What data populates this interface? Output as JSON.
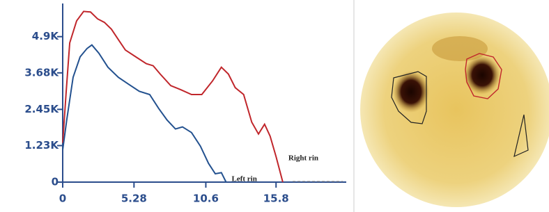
{
  "chart_data": {
    "type": "line",
    "xlim": [
      0,
      21
    ],
    "ylim": [
      0,
      5900
    ],
    "xticks": [
      0,
      5.28,
      10.6,
      15.8
    ],
    "yticks": [
      0,
      {
        "value": 1230,
        "label": "1.23K"
      },
      {
        "value": 2450,
        "label": "2.45K"
      },
      {
        "value": 3680,
        "label": "3.68K"
      },
      {
        "value": 4900,
        "label": "4.9K"
      }
    ],
    "series": [
      {
        "name": "Right rin",
        "color": "#c0262b",
        "x": [
          0,
          0.26,
          0.52,
          1.03,
          1.55,
          2.06,
          2.58,
          3.09,
          3.61,
          4.12,
          4.64,
          5.41,
          6.19,
          6.7,
          7.22,
          8.0,
          8.76,
          9.54,
          10.3,
          11.1,
          11.75,
          12.27,
          12.78,
          13.4,
          14.0,
          14.5,
          14.95,
          15.36,
          15.8,
          16.3
        ],
        "values": [
          1320,
          3060,
          4690,
          5430,
          5750,
          5730,
          5500,
          5380,
          5150,
          4800,
          4450,
          4220,
          3990,
          3920,
          3640,
          3250,
          3110,
          2950,
          2950,
          3410,
          3870,
          3640,
          3180,
          2950,
          2020,
          1620,
          1950,
          1550,
          860,
          0
        ]
      },
      {
        "name": "Left rin",
        "color": "#23518f",
        "x": [
          0,
          0.31,
          0.77,
          1.29,
          1.8,
          2.16,
          2.68,
          3.35,
          4.12,
          4.9,
          5.67,
          6.44,
          7.11,
          7.73,
          8.35,
          8.87,
          9.54,
          10.2,
          10.8,
          11.3,
          11.75,
          12.1
        ],
        "values": [
          1090,
          2130,
          3530,
          4220,
          4500,
          4620,
          4340,
          3870,
          3530,
          3290,
          3060,
          2950,
          2480,
          2090,
          1790,
          1860,
          1670,
          1210,
          630,
          280,
          320,
          0
        ]
      }
    ]
  }
}
